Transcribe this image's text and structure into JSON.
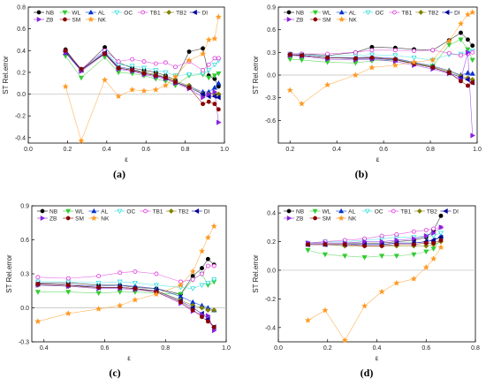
{
  "chart_data": [
    {
      "type": "scatter",
      "panel_label": "(a)",
      "xlabel": "ε",
      "ylabel": "ST Rel.error",
      "xlim": [
        0.0,
        1.0
      ],
      "ylim": [
        -0.45,
        0.8
      ],
      "xticks": [
        "0.0",
        "0.2",
        "0.4",
        "0.6",
        "0.8",
        "1.0"
      ],
      "yticks": [
        "-0.4",
        "-0.2",
        "0.0",
        "0.2",
        "0.4",
        "0.6",
        "0.8"
      ],
      "x": [
        0.19,
        0.27,
        0.39,
        0.46,
        0.53,
        0.59,
        0.65,
        0.7,
        0.75,
        0.82,
        0.89,
        0.92,
        0.95,
        0.97
      ],
      "series": [
        {
          "name": "NB",
          "values": [
            0.41,
            0.22,
            0.43,
            0.29,
            0.24,
            0.22,
            0.2,
            0.17,
            0.13,
            0.39,
            0.42,
            0.17,
            0.14,
            0.07
          ]
        },
        {
          "name": "WL",
          "values": [
            0.35,
            0.15,
            0.34,
            0.2,
            0.19,
            0.17,
            0.14,
            0.12,
            0.08,
            0.17,
            0.18,
            0.15,
            0.17,
            0.19
          ]
        },
        {
          "name": "AL",
          "values": [
            0.38,
            0.22,
            0.38,
            0.25,
            0.23,
            0.2,
            0.18,
            0.15,
            0.11,
            0.07,
            0.02,
            0.02,
            0.06,
            0.1
          ]
        },
        {
          "name": "OC",
          "values": [
            0.39,
            0.23,
            0.39,
            0.27,
            0.26,
            0.24,
            0.22,
            0.2,
            0.17,
            0.18,
            0.19,
            0.22,
            0.27,
            0.31
          ]
        },
        {
          "name": "TB1",
          "values": [
            0.4,
            0.23,
            0.4,
            0.3,
            0.32,
            0.3,
            0.28,
            0.29,
            0.25,
            0.3,
            0.22,
            0.27,
            0.33,
            0.33
          ]
        },
        {
          "name": "TB2",
          "values": [
            0.4,
            0.22,
            0.37,
            0.24,
            0.22,
            0.2,
            0.18,
            0.16,
            0.12,
            0.08,
            0.0,
            0.0,
            0.0,
            0.0
          ]
        },
        {
          "name": "DI",
          "values": [
            0.39,
            0.22,
            0.38,
            0.24,
            0.22,
            0.19,
            0.17,
            0.15,
            0.11,
            0.06,
            0.0,
            -0.02,
            -0.02,
            -0.03
          ]
        },
        {
          "name": "ZB",
          "values": [
            0.38,
            0.21,
            0.37,
            0.23,
            0.21,
            0.18,
            0.16,
            0.14,
            0.1,
            0.05,
            -0.03,
            0.0,
            0.02,
            -0.26
          ]
        },
        {
          "name": "SM",
          "values": [
            0.4,
            0.23,
            0.37,
            0.24,
            0.22,
            0.19,
            0.17,
            0.15,
            0.11,
            0.06,
            -0.09,
            -0.07,
            -0.09,
            -0.14
          ]
        },
        {
          "name": "NK",
          "values": [
            0.07,
            -0.43,
            0.13,
            -0.02,
            0.04,
            0.03,
            0.04,
            0.08,
            0.16,
            0.31,
            0.37,
            0.5,
            0.51,
            0.71
          ]
        }
      ]
    },
    {
      "type": "scatter",
      "panel_label": "(b)",
      "xlabel": "ε",
      "ylabel": "ST Rel.error",
      "xlim": [
        0.15,
        1.0
      ],
      "ylim": [
        -0.9,
        0.9
      ],
      "xticks": [
        "0.2",
        "0.4",
        "0.6",
        "0.8",
        "1.0"
      ],
      "yticks": [
        "-0.6",
        "-0.3",
        "0.0",
        "0.3",
        "0.6",
        "0.9"
      ],
      "x": [
        0.2,
        0.25,
        0.36,
        0.48,
        0.55,
        0.65,
        0.73,
        0.81,
        0.88,
        0.93,
        0.96,
        0.98
      ],
      "series": [
        {
          "name": "NB",
          "values": [
            0.28,
            0.28,
            0.26,
            0.3,
            0.37,
            0.36,
            0.34,
            0.33,
            0.46,
            0.56,
            0.47,
            0.39
          ]
        },
        {
          "name": "WL",
          "values": [
            0.21,
            0.2,
            0.17,
            0.16,
            0.19,
            0.2,
            0.15,
            0.12,
            0.4,
            0.47,
            0.34,
            0.2
          ]
        },
        {
          "name": "AL",
          "values": [
            0.27,
            0.26,
            0.23,
            0.23,
            0.24,
            0.22,
            0.17,
            0.12,
            0.06,
            0.0,
            0.03,
            0.02
          ]
        },
        {
          "name": "OC",
          "values": [
            0.28,
            0.27,
            0.25,
            0.26,
            0.27,
            0.26,
            0.23,
            0.2,
            0.27,
            0.28,
            0.3,
            0.32
          ]
        },
        {
          "name": "TB1",
          "values": [
            0.28,
            0.28,
            0.28,
            0.3,
            0.33,
            0.33,
            0.32,
            0.33,
            0.29,
            0.26,
            0.28,
            0.3
          ]
        },
        {
          "name": "TB2",
          "values": [
            0.27,
            0.26,
            0.23,
            0.22,
            0.23,
            0.21,
            0.16,
            0.11,
            0.05,
            -0.01,
            -0.04,
            -0.06
          ]
        },
        {
          "name": "DI",
          "values": [
            0.27,
            0.26,
            0.23,
            0.22,
            0.22,
            0.2,
            0.15,
            0.1,
            0.03,
            -0.03,
            -0.06,
            -0.1
          ]
        },
        {
          "name": "ZB",
          "values": [
            0.26,
            0.25,
            0.21,
            0.2,
            0.21,
            0.18,
            0.13,
            0.08,
            0.02,
            -0.06,
            0.3,
            -0.8
          ]
        },
        {
          "name": "SM",
          "values": [
            0.27,
            0.26,
            0.23,
            0.22,
            0.23,
            0.21,
            0.15,
            0.1,
            0.03,
            -0.08,
            -0.14,
            -0.1
          ]
        },
        {
          "name": "NK",
          "values": [
            -0.2,
            -0.38,
            -0.13,
            0.0,
            0.1,
            0.13,
            0.17,
            0.2,
            0.45,
            0.68,
            0.8,
            0.83
          ]
        }
      ]
    },
    {
      "type": "scatter",
      "panel_label": "(c)",
      "xlabel": "ε",
      "ylabel": "ST Rel.error",
      "xlim": [
        0.36,
        1.0
      ],
      "ylim": [
        -0.3,
        0.9
      ],
      "xticks": [
        "0.4",
        "0.6",
        "0.8",
        "1.0"
      ],
      "yticks": [
        "-0.3",
        "0.0",
        "0.3",
        "0.6",
        "0.9"
      ],
      "x": [
        0.38,
        0.48,
        0.58,
        0.65,
        0.7,
        0.77,
        0.85,
        0.89,
        0.92,
        0.94,
        0.96
      ],
      "series": [
        {
          "name": "NB",
          "values": [
            0.22,
            0.22,
            0.2,
            0.2,
            0.18,
            0.17,
            0.12,
            0.28,
            0.35,
            0.43,
            0.38
          ]
        },
        {
          "name": "WL",
          "values": [
            0.14,
            0.14,
            0.13,
            0.14,
            0.14,
            0.13,
            0.12,
            0.25,
            0.3,
            0.2,
            0.23
          ]
        },
        {
          "name": "AL",
          "values": [
            0.21,
            0.2,
            0.19,
            0.2,
            0.19,
            0.17,
            0.1,
            0.05,
            0.02,
            0.0,
            -0.02
          ]
        },
        {
          "name": "OC",
          "values": [
            0.23,
            0.23,
            0.22,
            0.23,
            0.22,
            0.2,
            0.18,
            0.17,
            0.2,
            0.22,
            0.25
          ]
        },
        {
          "name": "TB1",
          "values": [
            0.27,
            0.26,
            0.28,
            0.31,
            0.32,
            0.3,
            0.23,
            0.25,
            0.3,
            0.37,
            0.37
          ]
        },
        {
          "name": "TB2",
          "values": [
            0.2,
            0.19,
            0.18,
            0.18,
            0.17,
            0.15,
            0.07,
            0.02,
            0.0,
            -0.02,
            -0.02
          ]
        },
        {
          "name": "DI",
          "values": [
            0.21,
            0.2,
            0.18,
            0.18,
            0.17,
            0.15,
            0.06,
            0.0,
            -0.05,
            -0.1,
            -0.17
          ]
        },
        {
          "name": "ZB",
          "values": [
            0.2,
            0.19,
            0.17,
            0.17,
            0.16,
            0.14,
            0.04,
            -0.03,
            -0.06,
            -0.07,
            -0.2
          ]
        },
        {
          "name": "SM",
          "values": [
            0.21,
            0.2,
            0.18,
            0.18,
            0.17,
            0.14,
            0.05,
            -0.02,
            -0.08,
            -0.12,
            -0.17
          ]
        },
        {
          "name": "NK",
          "values": [
            -0.12,
            -0.05,
            -0.01,
            0.02,
            0.07,
            0.12,
            0.2,
            0.32,
            0.5,
            0.62,
            0.72
          ]
        }
      ]
    },
    {
      "type": "scatter",
      "panel_label": "(d)",
      "xlabel": "ε",
      "ylabel": "ST Rel.error",
      "xlim": [
        0.0,
        0.8
      ],
      "ylim": [
        -0.5,
        0.45
      ],
      "xticks": [
        "0.0",
        "0.2",
        "0.4",
        "0.6",
        "0.8"
      ],
      "yticks": [
        "-0.4",
        "-0.2",
        "0.0",
        "0.2",
        "0.4"
      ],
      "x": [
        0.12,
        0.19,
        0.27,
        0.35,
        0.42,
        0.48,
        0.55,
        0.6,
        0.63,
        0.66
      ],
      "series": [
        {
          "name": "NB",
          "values": [
            0.19,
            0.19,
            0.19,
            0.19,
            0.19,
            0.2,
            0.21,
            0.23,
            0.28,
            0.38
          ]
        },
        {
          "name": "WL",
          "values": [
            0.14,
            0.11,
            0.1,
            0.09,
            0.1,
            0.1,
            0.11,
            0.13,
            0.15,
            0.22
          ]
        },
        {
          "name": "AL",
          "values": [
            0.18,
            0.18,
            0.18,
            0.18,
            0.18,
            0.19,
            0.19,
            0.2,
            0.21,
            0.24
          ]
        },
        {
          "name": "OC",
          "values": [
            0.19,
            0.2,
            0.2,
            0.21,
            0.22,
            0.23,
            0.23,
            0.24,
            0.24,
            0.26
          ]
        },
        {
          "name": "TB1",
          "values": [
            0.19,
            0.2,
            0.21,
            0.22,
            0.24,
            0.25,
            0.27,
            0.28,
            0.29,
            0.3
          ]
        },
        {
          "name": "TB2",
          "values": [
            0.18,
            0.18,
            0.17,
            0.17,
            0.17,
            0.17,
            0.17,
            0.17,
            0.18,
            0.2
          ]
        },
        {
          "name": "DI",
          "values": [
            0.18,
            0.18,
            0.18,
            0.18,
            0.18,
            0.19,
            0.19,
            0.2,
            0.21,
            0.23
          ]
        },
        {
          "name": "ZB",
          "values": [
            0.19,
            0.19,
            0.19,
            0.2,
            0.2,
            0.21,
            0.22,
            0.24,
            0.26,
            0.3
          ]
        },
        {
          "name": "SM",
          "values": [
            0.18,
            0.18,
            0.18,
            0.17,
            0.17,
            0.18,
            0.18,
            0.19,
            0.19,
            0.21
          ]
        },
        {
          "name": "NK",
          "values": [
            -0.35,
            -0.28,
            -0.49,
            -0.25,
            -0.15,
            -0.09,
            -0.06,
            0.02,
            0.08,
            0.16
          ]
        }
      ]
    }
  ],
  "legend": {
    "placement": "top",
    "entries": [
      {
        "key": "NB",
        "label": "NB",
        "color": "#000000",
        "marker": "circle",
        "fill": true
      },
      {
        "key": "WL",
        "label": "WL",
        "color": "#33cc33",
        "marker": "triangle-down",
        "fill": true
      },
      {
        "key": "AL",
        "label": "AL",
        "color": "#0033cc",
        "marker": "triangle-up",
        "fill": true
      },
      {
        "key": "OC",
        "label": "OC",
        "color": "#33dddd",
        "marker": "triangle-down",
        "fill": false
      },
      {
        "key": "TB1",
        "label": "TB1",
        "color": "#dd33dd",
        "marker": "circle",
        "fill": false
      },
      {
        "key": "TB2",
        "label": "TB2",
        "color": "#808000",
        "marker": "diamond",
        "fill": true
      },
      {
        "key": "DI",
        "label": "DI",
        "color": "#000099",
        "marker": "triangle-left",
        "fill": true
      },
      {
        "key": "ZB",
        "label": "ZB",
        "color": "#8822dd",
        "marker": "triangle-right",
        "fill": true
      },
      {
        "key": "SM",
        "label": "SM",
        "color": "#880000",
        "marker": "circle",
        "fill": true
      },
      {
        "key": "NK",
        "label": "NK",
        "color": "#ff9922",
        "marker": "star",
        "fill": true
      }
    ]
  }
}
